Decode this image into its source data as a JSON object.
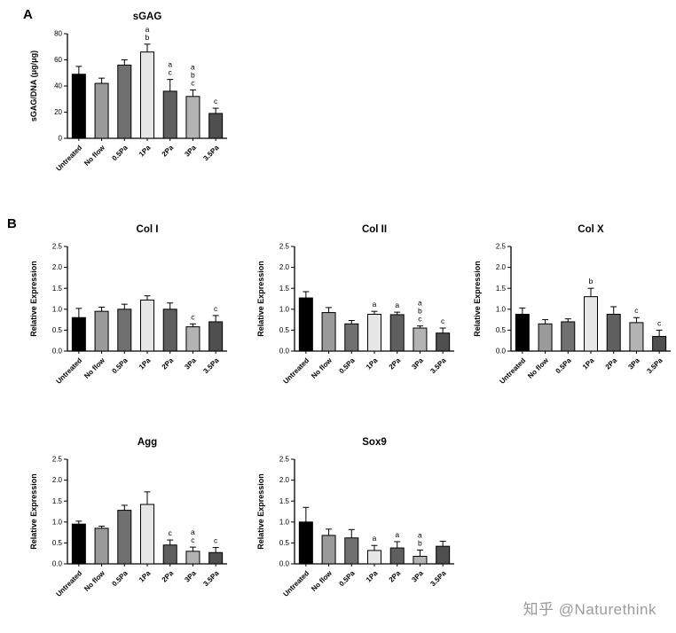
{
  "panels": {
    "a_label": "A",
    "b_label": "B"
  },
  "watermark": "知乎 @Naturethink",
  "bar_colors": [
    "#000000",
    "#9a9a9a",
    "#707070",
    "#e6e6e6",
    "#5f5f5f",
    "#b3b3b3",
    "#4f4f4f"
  ],
  "chart_data": [
    {
      "id": "sgag",
      "type": "bar",
      "title": "sGAG",
      "ylabel": "sGAG/DNA (μg/μg)",
      "ylim": [
        0,
        80
      ],
      "ytick_values": [
        0,
        20,
        40,
        60,
        80
      ],
      "ytick_labels": [
        "0",
        "20",
        "40",
        "60",
        "80"
      ],
      "categories": [
        "Untreated",
        "No flow",
        "0.5Pa",
        "1Pa",
        "2Pa",
        "3Pa",
        "3.5Pa"
      ],
      "values": [
        49,
        42,
        56,
        66,
        36,
        32,
        19
      ],
      "errors": [
        6,
        4,
        4,
        6,
        9,
        5,
        4
      ],
      "annotations": [
        [],
        [],
        [],
        [
          "a",
          "b"
        ],
        [
          "a",
          "c"
        ],
        [
          "a",
          "b",
          "c"
        ],
        [
          "c"
        ]
      ]
    },
    {
      "id": "col1",
      "type": "bar",
      "title": "Col I",
      "ylabel": "Relative Expression",
      "ylim": [
        0,
        2.5
      ],
      "ytick_values": [
        0,
        0.5,
        1.0,
        1.5,
        2.0,
        2.5
      ],
      "ytick_labels": [
        "0.0",
        "0.5",
        "1.0",
        "1.5",
        "2.0",
        "2.5"
      ],
      "categories": [
        "Untreated",
        "No flow",
        "0.5Pa",
        "1Pa",
        "2Pa",
        "3Pa",
        "3.5Pa"
      ],
      "values": [
        0.8,
        0.95,
        1.0,
        1.22,
        1.0,
        0.58,
        0.7
      ],
      "errors": [
        0.22,
        0.1,
        0.12,
        0.1,
        0.15,
        0.07,
        0.15
      ],
      "annotations": [
        [],
        [],
        [],
        [],
        [],
        [
          "c"
        ],
        [
          "c"
        ]
      ]
    },
    {
      "id": "col2",
      "type": "bar",
      "title": "Col II",
      "ylabel": "Relative Expression",
      "ylim": [
        0,
        2.5
      ],
      "ytick_values": [
        0,
        0.5,
        1.0,
        1.5,
        2.0,
        2.5
      ],
      "ytick_labels": [
        "0.0",
        "0.5",
        "1.0",
        "1.5",
        "2.0",
        "2.5"
      ],
      "categories": [
        "Untreated",
        "No flow",
        "0.5Pa",
        "1Pa",
        "2Pa",
        "3Pa",
        "3.5Pa"
      ],
      "values": [
        1.27,
        0.92,
        0.65,
        0.88,
        0.87,
        0.55,
        0.43
      ],
      "errors": [
        0.15,
        0.12,
        0.08,
        0.07,
        0.06,
        0.05,
        0.12
      ],
      "annotations": [
        [],
        [],
        [],
        [
          "a"
        ],
        [
          "a"
        ],
        [
          "a",
          "b",
          "c"
        ],
        [
          "c"
        ]
      ]
    },
    {
      "id": "colx",
      "type": "bar",
      "title": "Col X",
      "ylabel": "Relative Expression",
      "ylim": [
        0,
        2.5
      ],
      "ytick_values": [
        0,
        0.5,
        1.0,
        1.5,
        2.0,
        2.5
      ],
      "ytick_labels": [
        "0.0",
        "0.5",
        "1.0",
        "1.5",
        "2.0",
        "2.5"
      ],
      "categories": [
        "Untreated",
        "No flow",
        "0.5Pa",
        "1Pa",
        "2Pa",
        "3Pa",
        "3.5Pa"
      ],
      "values": [
        0.88,
        0.65,
        0.7,
        1.3,
        0.88,
        0.68,
        0.35
      ],
      "errors": [
        0.15,
        0.1,
        0.07,
        0.2,
        0.18,
        0.12,
        0.15
      ],
      "annotations": [
        [],
        [],
        [],
        [
          "b"
        ],
        [],
        [
          "c"
        ],
        [
          "c"
        ]
      ]
    },
    {
      "id": "agg",
      "type": "bar",
      "title": "Agg",
      "ylabel": "Relative Expression",
      "ylim": [
        0,
        2.5
      ],
      "ytick_values": [
        0,
        0.5,
        1.0,
        1.5,
        2.0,
        2.5
      ],
      "ytick_labels": [
        "0.0",
        "0.5",
        "1.0",
        "1.5",
        "2.0",
        "2.5"
      ],
      "categories": [
        "Untreated",
        "No flow",
        "0.5Pa",
        "1Pa",
        "2Pa",
        "3Pa",
        "3.5Pa"
      ],
      "values": [
        0.95,
        0.85,
        1.28,
        1.42,
        0.45,
        0.3,
        0.27
      ],
      "errors": [
        0.07,
        0.05,
        0.12,
        0.3,
        0.12,
        0.1,
        0.12
      ],
      "annotations": [
        [],
        [],
        [],
        [],
        [
          "c"
        ],
        [
          "a",
          "c"
        ],
        [
          "c"
        ]
      ]
    },
    {
      "id": "sox9",
      "type": "bar",
      "title": "Sox9",
      "ylabel": "Relative Expression",
      "ylim": [
        0,
        2.5
      ],
      "ytick_values": [
        0,
        0.5,
        1.0,
        1.5,
        2.0,
        2.5
      ],
      "ytick_labels": [
        "0.0",
        "0.5",
        "1.0",
        "1.5",
        "2.0",
        "2.5"
      ],
      "categories": [
        "Untreated",
        "No flow",
        "0.5Pa",
        "1Pa",
        "2Pa",
        "3Pa",
        "3.5Pa"
      ],
      "values": [
        1.0,
        0.68,
        0.62,
        0.32,
        0.38,
        0.18,
        0.42
      ],
      "errors": [
        0.35,
        0.15,
        0.2,
        0.12,
        0.15,
        0.15,
        0.12
      ],
      "annotations": [
        [],
        [],
        [],
        [
          "a"
        ],
        [
          "a"
        ],
        [
          "a",
          "b"
        ],
        []
      ]
    }
  ]
}
